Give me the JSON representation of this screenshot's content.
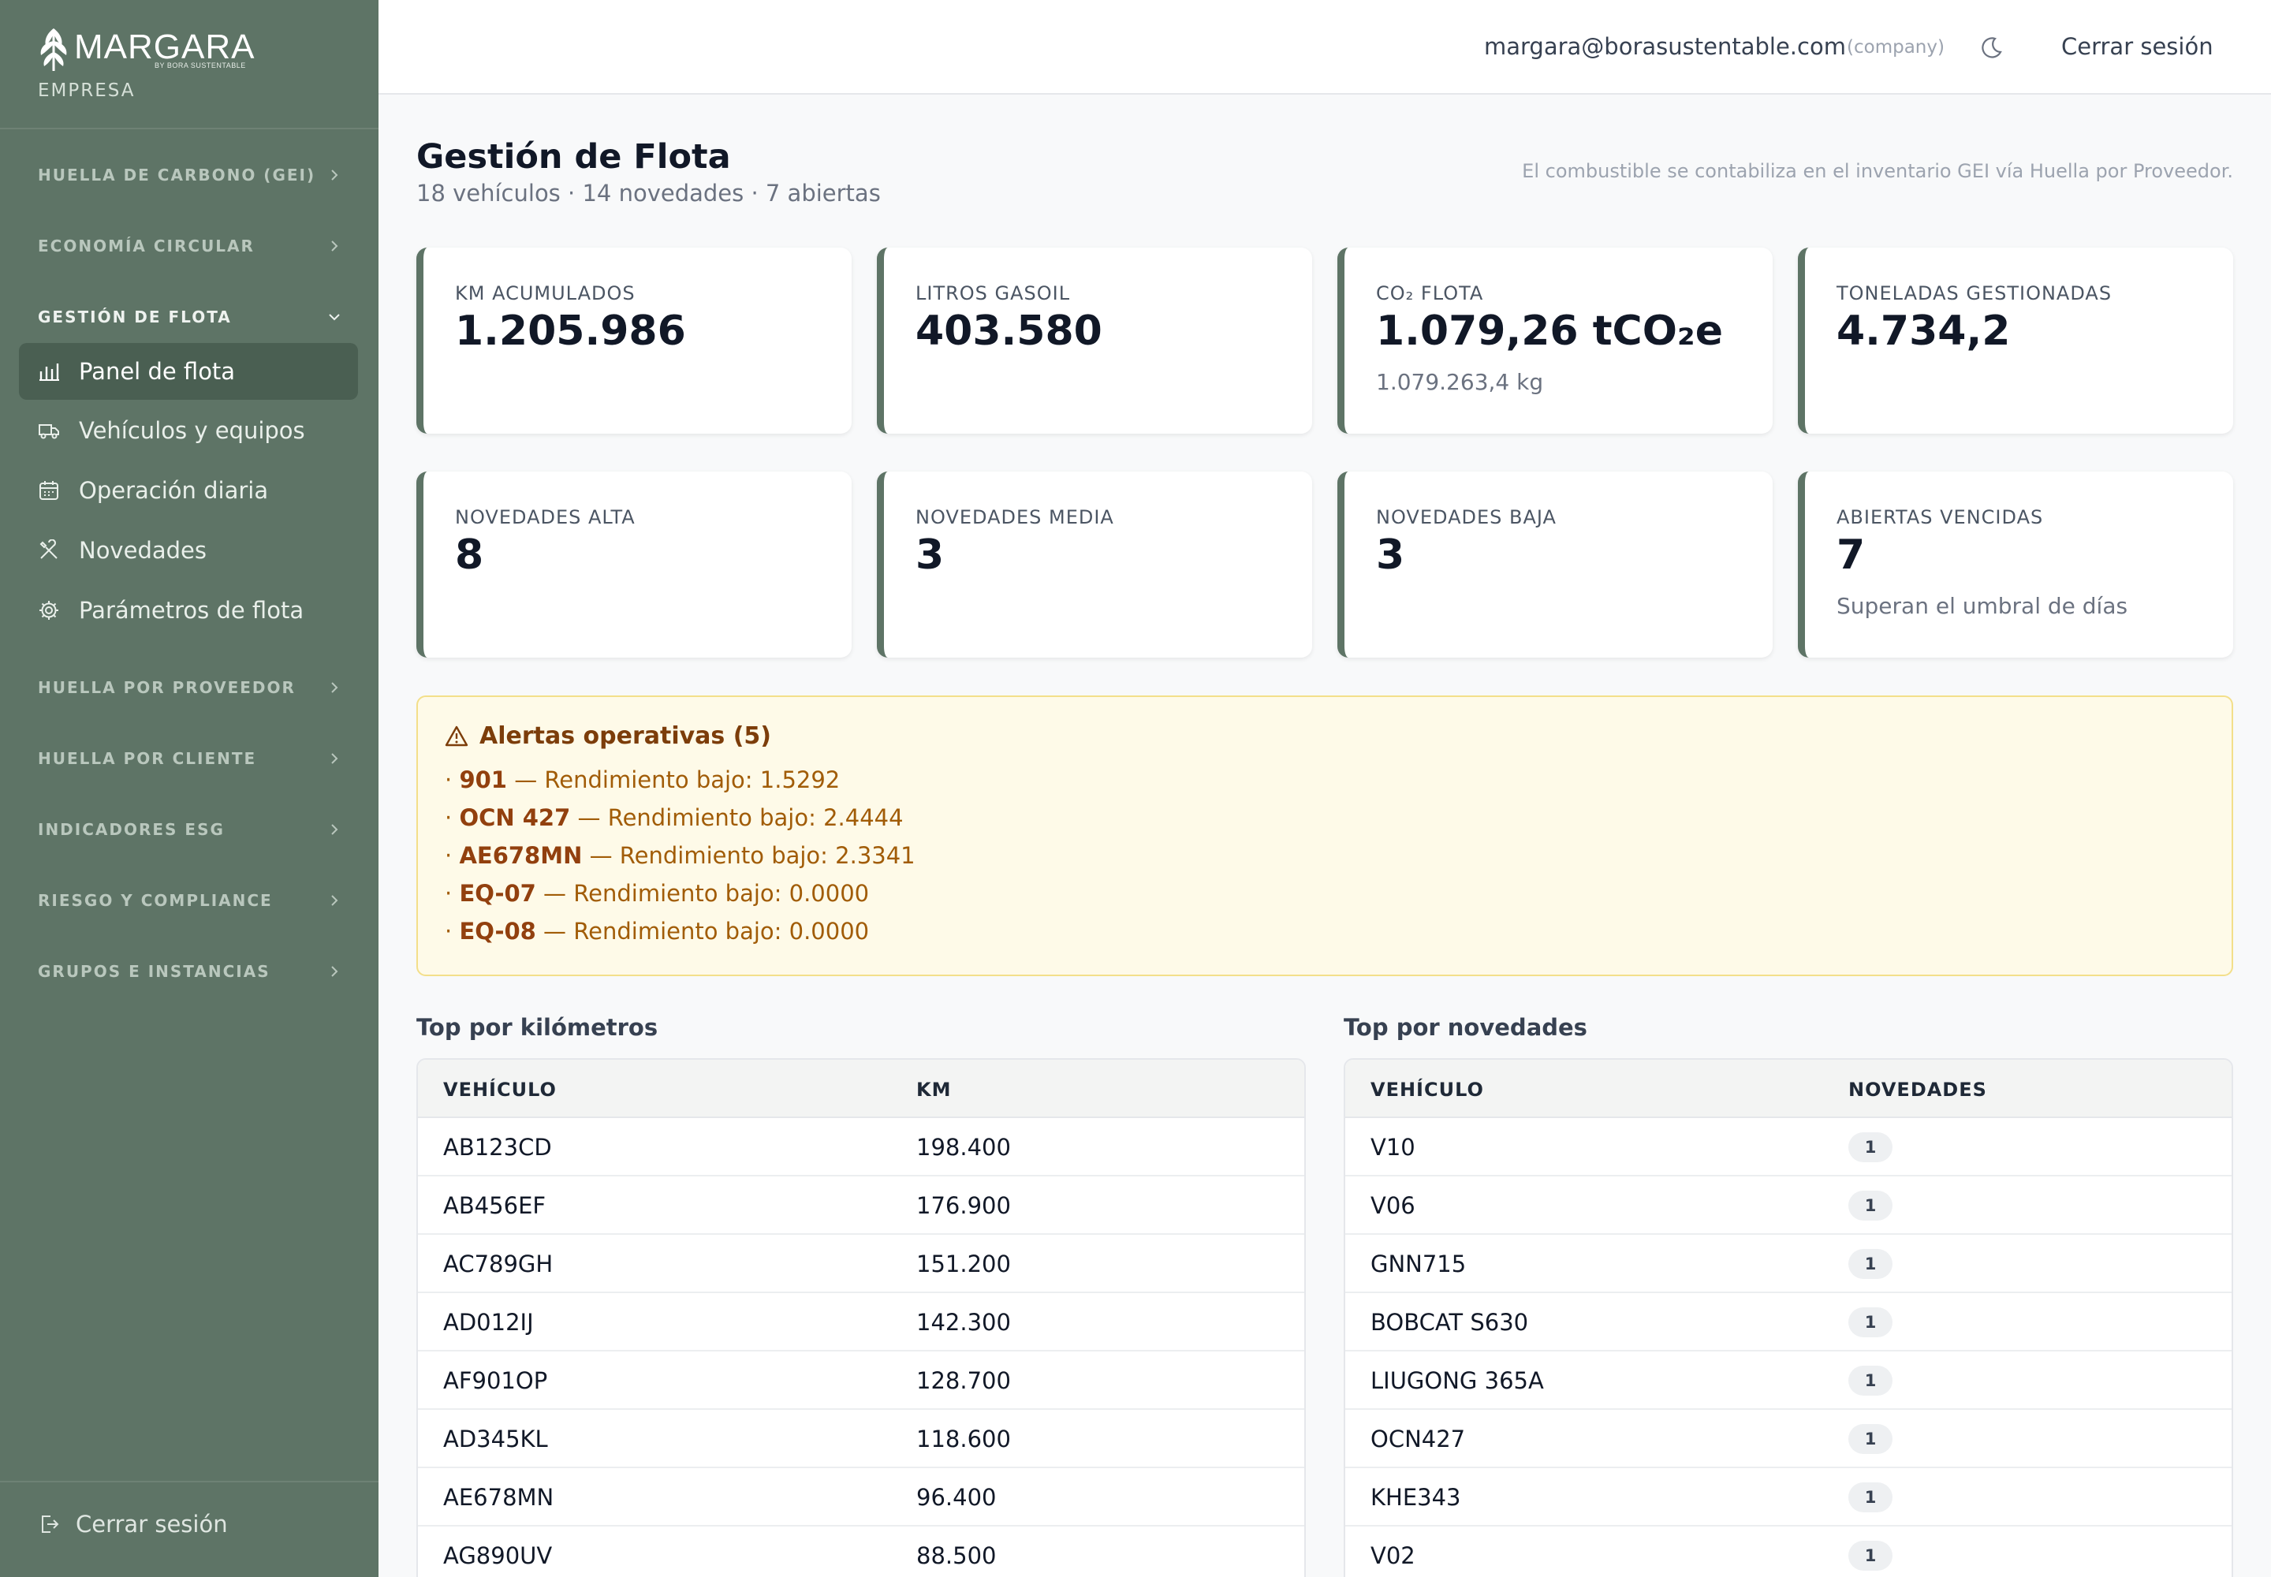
{
  "brand": {
    "name": "MARGARA",
    "sub": "BY BORA SUSTENTABLE",
    "tag": "EMPRESA"
  },
  "sidebar": {
    "sections": [
      {
        "label": "HUELLA DE CARBONO (GEI)"
      },
      {
        "label": "ECONOMÍA CIRCULAR"
      },
      {
        "label": "GESTIÓN DE FLOTA"
      },
      {
        "label": "HUELLA POR PROVEEDOR"
      },
      {
        "label": "HUELLA POR CLIENTE"
      },
      {
        "label": "INDICADORES ESG"
      },
      {
        "label": "RIESGO Y COMPLIANCE"
      },
      {
        "label": "GRUPOS E INSTANCIAS"
      }
    ],
    "fleet_items": [
      {
        "label": "Panel de flota",
        "icon": "bar-chart-icon"
      },
      {
        "label": "Vehículos y equipos",
        "icon": "truck-icon"
      },
      {
        "label": "Operación diaria",
        "icon": "calendar-icon"
      },
      {
        "label": "Novedades",
        "icon": "tools-icon"
      },
      {
        "label": "Parámetros de flota",
        "icon": "gear-icon"
      }
    ],
    "logout_label": "Cerrar sesión"
  },
  "topbar": {
    "email": "margara@borasustentable.com",
    "role": "(company)",
    "logout_label": "Cerrar sesión"
  },
  "header": {
    "title": "Gestión de Flota",
    "subtitle": "18 vehículos · 14 novedades · 7 abiertas",
    "note": "El combustible se contabiliza en el inventario GEI vía Huella por Proveedor."
  },
  "cards_row1": [
    {
      "label": "KM ACUMULADOS",
      "value": "1.205.986",
      "sub": ""
    },
    {
      "label": "LITROS GASOIL",
      "value": "403.580",
      "sub": ""
    },
    {
      "label": "CO₂ FLOTA",
      "value": "1.079,26 tCO₂e",
      "sub": "1.079.263,4 kg"
    },
    {
      "label": "TONELADAS GESTIONADAS",
      "value": "4.734,2",
      "sub": ""
    }
  ],
  "cards_row2": [
    {
      "label": "NOVEDADES ALTA",
      "value": "8",
      "sub": ""
    },
    {
      "label": "NOVEDADES MEDIA",
      "value": "3",
      "sub": ""
    },
    {
      "label": "NOVEDADES BAJA",
      "value": "3",
      "sub": ""
    },
    {
      "label": "ABIERTAS VENCIDAS",
      "value": "7",
      "sub": "Superan el umbral de días"
    }
  ],
  "alerts": {
    "title": "Alertas operativas (5)",
    "items": [
      {
        "prefix": "· ",
        "id": "901",
        "text": " — Rendimiento bajo: 1.5292"
      },
      {
        "prefix": "· ",
        "id": "OCN 427",
        "text": " — Rendimiento bajo: 2.4444"
      },
      {
        "prefix": "· ",
        "id": "AE678MN",
        "text": " — Rendimiento bajo: 2.3341"
      },
      {
        "prefix": "· ",
        "id": "EQ-07",
        "text": " — Rendimiento bajo: 0.0000"
      },
      {
        "prefix": "· ",
        "id": "EQ-08",
        "text": " — Rendimiento bajo: 0.0000"
      }
    ]
  },
  "top_km": {
    "title": "Top por kilómetros",
    "headers": [
      "VEHÍCULO",
      "KM"
    ],
    "rows": [
      [
        "AB123CD",
        "198.400"
      ],
      [
        "AB456EF",
        "176.900"
      ],
      [
        "AC789GH",
        "151.200"
      ],
      [
        "AD012IJ",
        "142.300"
      ],
      [
        "AF901OP",
        "128.700"
      ],
      [
        "AD345KL",
        "118.600"
      ],
      [
        "AE678MN",
        "96.400"
      ],
      [
        "AG890UV",
        "88.500"
      ]
    ]
  },
  "top_novedades": {
    "title": "Top por novedades",
    "headers": [
      "VEHÍCULO",
      "NOVEDADES"
    ],
    "rows": [
      [
        "V10",
        "1"
      ],
      [
        "V06",
        "1"
      ],
      [
        "GNN715",
        "1"
      ],
      [
        "BOBCAT S630",
        "1"
      ],
      [
        "LIUGONG 365A",
        "1"
      ],
      [
        "OCN427",
        "1"
      ],
      [
        "KHE343",
        "1"
      ],
      [
        "V02",
        "1"
      ]
    ]
  }
}
